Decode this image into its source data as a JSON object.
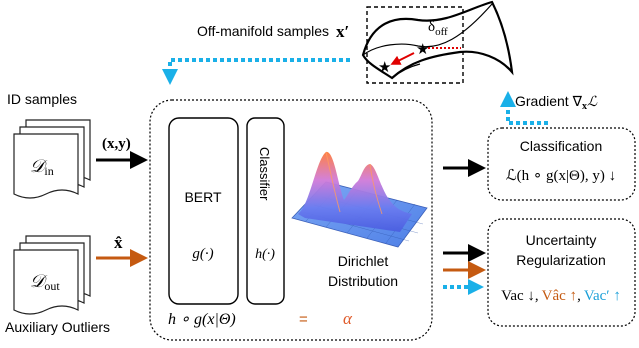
{
  "top": {
    "off_manifold_title": "Off-manifold samples",
    "x_prime": "x′",
    "delta_off": "δ",
    "delta_off_sub": "off",
    "gradient_label": "Gradient ∇",
    "gradient_sub": "x",
    "gradient_L": "ℒ"
  },
  "left": {
    "id_title": "ID samples",
    "d_in": "𝒟",
    "d_in_sub": "in",
    "d_out": "𝒟",
    "d_out_sub": "out",
    "aux_title": "Auxiliary Outliers",
    "xy_label": "(x,y)",
    "xhat_label": "x̂"
  },
  "model": {
    "bert_title": "BERT",
    "bert_func": "g(·)",
    "classifier_title": "Classifier",
    "classifier_func": "h(·)",
    "dirichlet_line1": "Dirichlet",
    "dirichlet_line2": "Distribution",
    "composition": "h ∘ g(x|Θ)",
    "equals": "=",
    "alpha": "α"
  },
  "right": {
    "classification_title": "Classification",
    "classification_loss": "ℒ(h ∘ g(x|Θ), y) ↓",
    "uncertainty_line1": "Uncertainty",
    "uncertainty_line2": "Regularization",
    "vac": "Vac ↓",
    "vac_hat": "Vâc ↑",
    "vac_prime": "Vac′ ↑",
    "comma": ","
  },
  "colors": {
    "black": "#000000",
    "orange": "#c55a11",
    "cyan": "#1ab0e8",
    "red": "#e00000",
    "vac_hat_text": "#c55a11",
    "vac_prime_text": "#1a9fd8"
  },
  "icons": [
    "star-icon",
    "document-stack-icon",
    "arrow-icon",
    "dirichlet-surface-icon",
    "manifold-surface-icon"
  ]
}
